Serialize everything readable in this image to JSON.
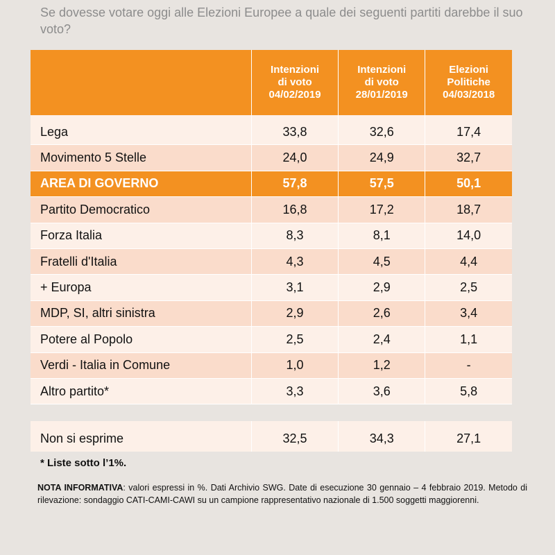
{
  "question": "Se dovesse votare oggi alle Elezioni Europee a quale dei seguenti partiti darebbe il suo voto?",
  "chart_data": {
    "type": "table",
    "columns": [
      {
        "line1": "Intenzioni",
        "line2": "di voto",
        "line3": "04/02/2019"
      },
      {
        "line1": "Intenzioni",
        "line2": "di voto",
        "line3": "28/01/2019"
      },
      {
        "line1": "Elezioni",
        "line2": "Politiche",
        "line3": "04/03/2018"
      }
    ],
    "rows": [
      {
        "name": "Lega",
        "values": [
          "33,8",
          "32,6",
          "17,4"
        ]
      },
      {
        "name": "Movimento 5 Stelle",
        "values": [
          "24,0",
          "24,9",
          "32,7"
        ]
      },
      {
        "name": "AREA DI GOVERNO",
        "values": [
          "57,8",
          "57,5",
          "50,1"
        ],
        "highlight": true
      },
      {
        "name": "Partito Democratico",
        "values": [
          "16,8",
          "17,2",
          "18,7"
        ]
      },
      {
        "name": "Forza Italia",
        "values": [
          "8,3",
          "8,1",
          "14,0"
        ]
      },
      {
        "name": "Fratelli d'Italia",
        "values": [
          "4,3",
          "4,5",
          "4,4"
        ]
      },
      {
        "name": "+ Europa",
        "values": [
          "3,1",
          "2,9",
          "2,5"
        ]
      },
      {
        "name": "MDP, SI, altri sinistra",
        "values": [
          "2,9",
          "2,6",
          "3,4"
        ]
      },
      {
        "name": "Potere al Popolo",
        "values": [
          "2,5",
          "2,4",
          "1,1"
        ]
      },
      {
        "name": "Verdi - Italia in Comune",
        "values": [
          "1,0",
          "1,2",
          "-"
        ]
      },
      {
        "name": "Altro partito*",
        "values": [
          "3,3",
          "3,6",
          "5,8"
        ]
      }
    ],
    "non_si_esprime": {
      "name": "Non si esprime",
      "values": [
        "32,5",
        "34,3",
        "27,1"
      ]
    },
    "colors": {
      "header": "#f39121",
      "row_light": "#fdf0e8",
      "row_dark": "#fadccb",
      "highlight": "#f39121"
    }
  },
  "footnote": "* Liste sotto l’1%.",
  "nota": {
    "label": "NOTA INFORMATIVA",
    "text": ": valori espressi in %. Dati Archivio SWG. Date di esecuzione 30 gennaio – 4 febbraio 2019. Metodo di rilevazione: sondaggio CATI-CAMI-CAWI su un campione rappresentativo nazionale di 1.500 soggetti maggiorenni."
  }
}
